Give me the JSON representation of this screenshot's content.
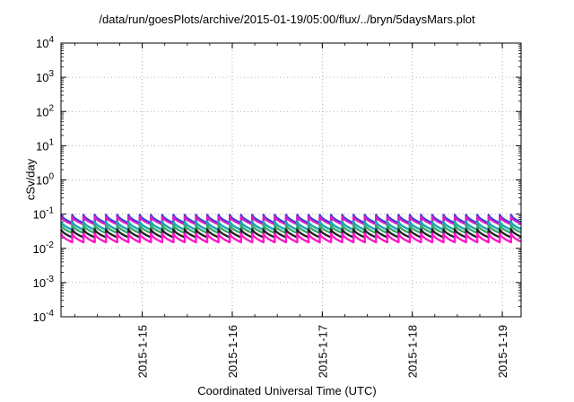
{
  "chart_data": {
    "type": "line",
    "title": "/data/run/goesPlots/archive/2015-01-19/05:00/flux/../bryn/5daysMars.plot",
    "xlabel": "Coordinated Universal Time (UTC)",
    "ylabel": "cSv/day",
    "yscale": "log",
    "ylim": [
      0.0001,
      10000
    ],
    "xlim": [
      "2015-01-14T02:20",
      "2015-01-19T05:00"
    ],
    "grid": true,
    "x_ticks": [
      "2015-1-15",
      "2015-1-16",
      "2015-1-17",
      "2015-1-18",
      "2015-1-19"
    ],
    "y_ticks": [
      {
        "base": "10",
        "exp": "-4"
      },
      {
        "base": "10",
        "exp": "-3"
      },
      {
        "base": "10",
        "exp": "-2"
      },
      {
        "base": "10",
        "exp": "-1"
      },
      {
        "base": "10",
        "exp": "0"
      },
      {
        "base": "10",
        "exp": "1"
      },
      {
        "base": "10",
        "exp": "2"
      },
      {
        "base": "10",
        "exp": "3"
      },
      {
        "base": "10",
        "exp": "4"
      }
    ],
    "sawtooth": {
      "period_hours": 3,
      "start": "2015-01-14T02:20",
      "shape": "sharp rise at each period start, decay until next period"
    },
    "series": [
      {
        "color": "#1f3fd6",
        "peak": 0.095,
        "trough": 0.055
      },
      {
        "color": "#d11fc8",
        "peak": 0.085,
        "trough": 0.05
      },
      {
        "color": "#19a7b5",
        "peak": 0.06,
        "trough": 0.035
      },
      {
        "color": "#39a66a",
        "peak": 0.048,
        "trough": 0.028
      },
      {
        "color": "#232323",
        "peak": 0.036,
        "trough": 0.021
      },
      {
        "color": "#ff17c8",
        "peak": 0.027,
        "trough": 0.015
      }
    ]
  }
}
